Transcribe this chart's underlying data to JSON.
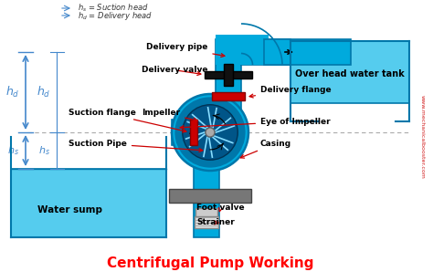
{
  "title": "Centrifugal Pump Working",
  "title_color": "#ff0000",
  "title_fontsize": 11,
  "bg_color": "#ffffff",
  "pipe_color": "#00aadd",
  "pipe_edge": "#0077aa",
  "water_color": "#55ccee",
  "base_color": "#777777",
  "valve_red_color": "#cc0000",
  "valve_black_color": "#111111",
  "label_color": "#000000",
  "dim_color": "#4488cc",
  "dashed_color": "#aaaaaa",
  "watermark_color": "#cc0000",
  "watermark_text": "www.mechanicalbooster.com",
  "labels": {
    "delivery_pipe": "Delivery pipe",
    "delivery_valve": "Delivery valve",
    "impeller": "Impeller",
    "suction_flange": "Suction flange",
    "delivery_flange": "Delivery flange",
    "suction_pipe": "Suction Pipe",
    "eye_of_impeller": "Eye of Impeller",
    "casing": "Casing",
    "foot_valve": "Foot valve",
    "strainer": "Strainer",
    "water_sump": "Water sump",
    "overhead_tank": "Over head water tank",
    "hs_label": "$h_s$",
    "hd_label": "$h_d$",
    "hs_eq": "$h_s$ = Suction head",
    "hd_eq": "$h_d$ = Delivery head"
  }
}
